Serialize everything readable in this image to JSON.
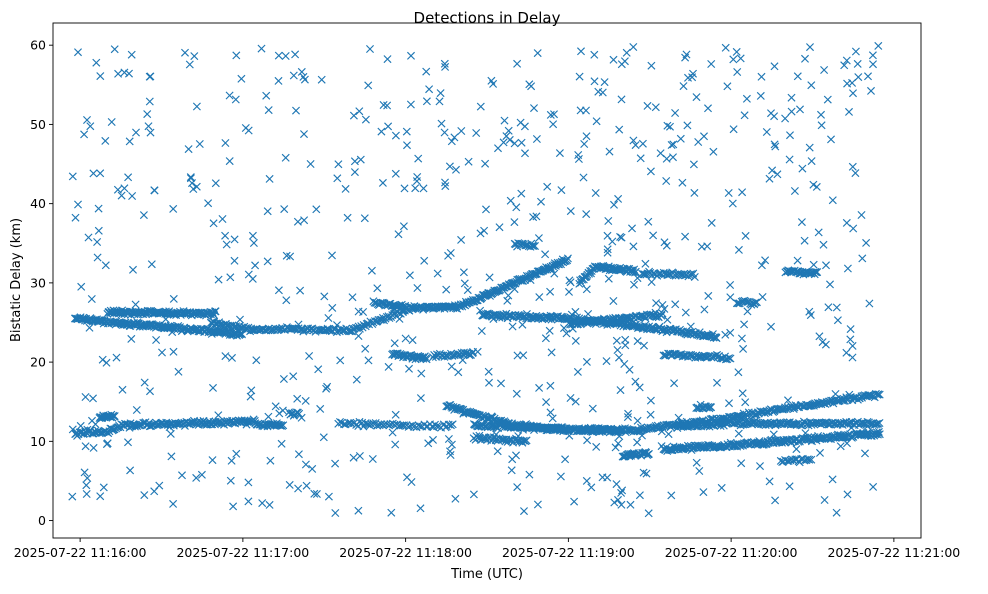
{
  "chart_data": {
    "type": "scatter",
    "title": "Detections in Delay",
    "xlabel": "Time (UTC)",
    "ylabel": "Bistatic Delay (km)",
    "x_ticks": [
      "2025-07-22 11:16:00",
      "2025-07-22 11:17:00",
      "2025-07-22 11:18:00",
      "2025-07-22 11:19:00",
      "2025-07-22 11:20:00",
      "2025-07-22 11:21:00"
    ],
    "y_ticks": [
      "0",
      "10",
      "20",
      "30",
      "40",
      "50",
      "60"
    ],
    "xlim": [
      "2025-07-22 11:15:50",
      "2025-07-22 11:21:10"
    ],
    "ylim": [
      -2.2,
      62.8
    ],
    "marker": "x",
    "marker_color": "#1f77b4",
    "data_span": [
      "2025-07-22 11:15:56",
      "2025-07-22 11:20:55"
    ],
    "tracks": [
      {
        "points": [
          [
            "11:15:58",
            25.5
          ],
          [
            "11:17:00",
            23.5
          ]
        ],
        "count": 200
      },
      {
        "points": [
          [
            "11:16:10",
            26.3
          ],
          [
            "11:16:50",
            26.1
          ]
        ],
        "count": 130
      },
      {
        "points": [
          [
            "11:16:48",
            25.0
          ],
          [
            "11:17:05",
            24.0
          ]
        ],
        "count": 40
      },
      {
        "points": [
          [
            "11:17:05",
            24.2
          ],
          [
            "11:17:40",
            24.0
          ],
          [
            "11:18:00",
            26.5
          ]
        ],
        "count": 110
      },
      {
        "points": [
          [
            "11:17:48",
            27.5
          ],
          [
            "11:18:00",
            27.0
          ]
        ],
        "count": 30
      },
      {
        "points": [
          [
            "11:18:00",
            26.8
          ],
          [
            "11:18:20",
            27.0
          ],
          [
            "11:19:00",
            33.0
          ]
        ],
        "count": 190
      },
      {
        "points": [
          [
            "11:18:28",
            26.0
          ],
          [
            "11:18:58",
            25.5
          ],
          [
            "11:19:20",
            24.8
          ],
          [
            "11:19:55",
            23.2
          ]
        ],
        "count": 230
      },
      {
        "points": [
          [
            "11:18:40",
            34.8
          ],
          [
            "11:18:48",
            34.8
          ]
        ],
        "count": 18
      },
      {
        "points": [
          [
            "11:19:00",
            24.8
          ],
          [
            "11:19:35",
            26.0
          ]
        ],
        "count": 80
      },
      {
        "points": [
          [
            "11:19:04",
            30.0
          ],
          [
            "11:19:10",
            32.0
          ],
          [
            "11:19:25",
            31.5
          ]
        ],
        "count": 70
      },
      {
        "points": [
          [
            "11:19:27",
            31.2
          ],
          [
            "11:19:47",
            31.0
          ]
        ],
        "count": 40
      },
      {
        "points": [
          [
            "11:19:35",
            21.0
          ],
          [
            "11:20:00",
            20.5
          ]
        ],
        "count": 50
      },
      {
        "points": [
          [
            "11:20:02",
            27.5
          ],
          [
            "11:20:10",
            27.5
          ]
        ],
        "count": 15
      },
      {
        "points": [
          [
            "11:20:20",
            31.5
          ],
          [
            "11:20:32",
            31.2
          ]
        ],
        "count": 35
      },
      {
        "points": [
          [
            "11:15:58",
            11.0
          ],
          [
            "11:16:10",
            11.2
          ],
          [
            "11:16:15",
            12.0
          ],
          [
            "11:17:05",
            12.5
          ]
        ],
        "count": 160
      },
      {
        "points": [
          [
            "11:16:07",
            13.0
          ],
          [
            "11:16:13",
            13.2
          ]
        ],
        "count": 20
      },
      {
        "points": [
          [
            "11:17:05",
            12.2
          ],
          [
            "11:17:15",
            12.0
          ]
        ],
        "count": 30
      },
      {
        "points": [
          [
            "11:17:17",
            13.5
          ],
          [
            "11:17:21",
            13.5
          ]
        ],
        "count": 10
      },
      {
        "points": [
          [
            "11:17:35",
            12.3
          ],
          [
            "11:18:00",
            12.0
          ],
          [
            "11:18:18",
            12.0
          ]
        ],
        "count": 60
      },
      {
        "points": [
          [
            "11:17:55",
            21.0
          ],
          [
            "11:18:08",
            20.5
          ]
        ],
        "count": 40
      },
      {
        "points": [
          [
            "11:18:10",
            20.8
          ],
          [
            "11:18:25",
            21.0
          ]
        ],
        "count": 30
      },
      {
        "points": [
          [
            "11:18:15",
            14.5
          ],
          [
            "11:18:40",
            12.0
          ],
          [
            "11:19:00",
            11.5
          ],
          [
            "11:19:20",
            11.4
          ]
        ],
        "count": 180
      },
      {
        "points": [
          [
            "11:18:25",
            12.0
          ],
          [
            "11:19:00",
            11.5
          ]
        ],
        "count": 90
      },
      {
        "points": [
          [
            "11:18:25",
            10.5
          ],
          [
            "11:18:45",
            10.0
          ]
        ],
        "count": 40
      },
      {
        "points": [
          [
            "11:19:05",
            11.4
          ],
          [
            "11:19:25",
            11.4
          ],
          [
            "11:20:00",
            13.0
          ],
          [
            "11:20:55",
            16.0
          ]
        ],
        "count": 260
      },
      {
        "points": [
          [
            "11:19:20",
            8.2
          ],
          [
            "11:19:30",
            8.5
          ]
        ],
        "count": 30
      },
      {
        "points": [
          [
            "11:19:35",
            9.0
          ],
          [
            "11:20:00",
            9.5
          ],
          [
            "11:20:55",
            11.0
          ]
        ],
        "count": 240
      },
      {
        "points": [
          [
            "11:19:40",
            11.8
          ],
          [
            "11:20:00",
            12.3
          ],
          [
            "11:20:55",
            12.2
          ]
        ],
        "count": 170
      },
      {
        "points": [
          [
            "11:19:47",
            14.3
          ],
          [
            "11:19:53",
            14.3
          ]
        ],
        "count": 15
      },
      {
        "points": [
          [
            "11:20:18",
            7.5
          ],
          [
            "11:20:30",
            7.8
          ]
        ],
        "count": 20
      }
    ],
    "noise_count": 720,
    "noise_y_range": [
      0.5,
      60
    ]
  }
}
